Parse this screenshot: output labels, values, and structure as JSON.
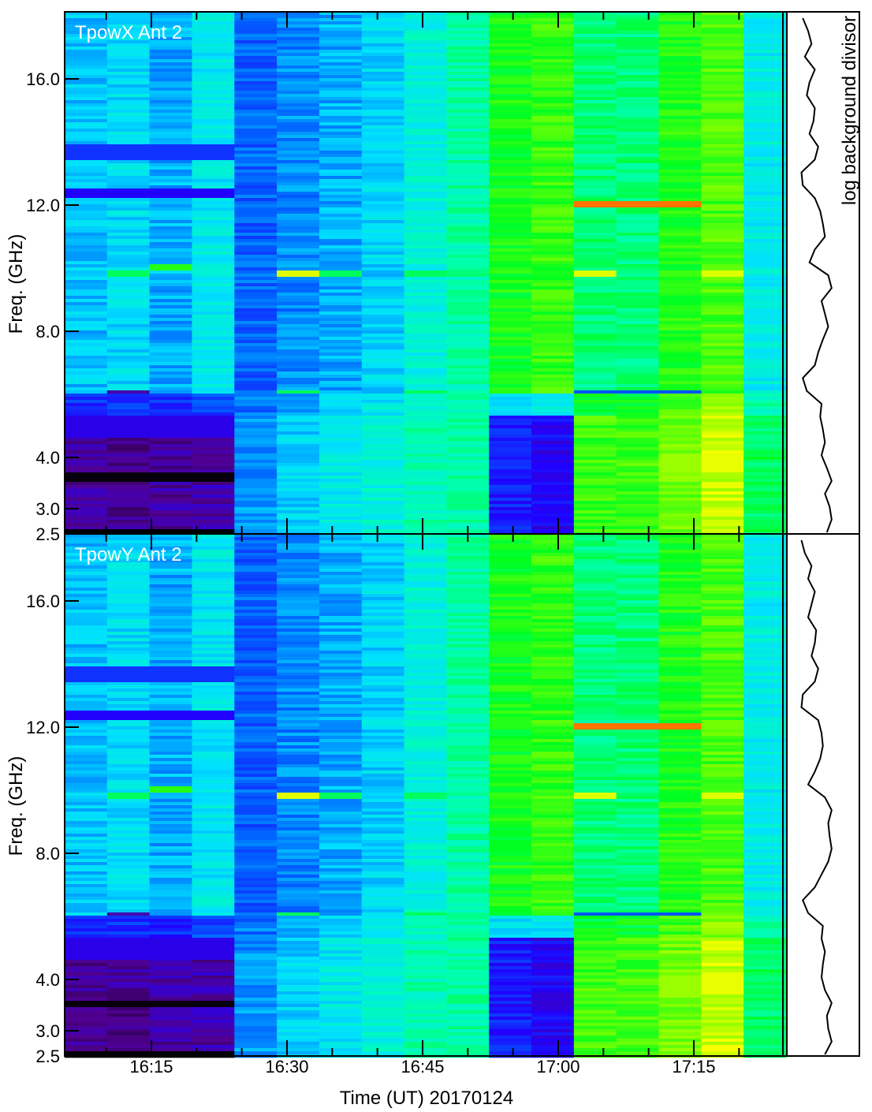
{
  "chart_data": {
    "type": "heatmap",
    "xlabel": "Time (UT) 20170124",
    "ylabel": "Freq. (GHz)",
    "side_label": "log background divisor",
    "x_ticks": [
      "16:15",
      "16:30",
      "16:45",
      "17:00",
      "17:15"
    ],
    "y_ticks": [
      "2.5",
      "3.0",
      "4.0",
      "8.0",
      "12.0",
      "16.0"
    ],
    "y_tick_values": [
      2.5,
      3.0,
      4.0,
      8.0,
      12.0,
      16.0
    ],
    "ylim": [
      2.5,
      18.1
    ],
    "colormap": [
      "#000000",
      "#500090",
      "#2000ff",
      "#0060ff",
      "#00e0ff",
      "#00ffb0",
      "#00ff20",
      "#80ff00",
      "#ffff00",
      "#ff0000"
    ],
    "panels": [
      {
        "title": "TpowX Ant 2",
        "column_levels": [
          0.42,
          0.45,
          0.4,
          0.47,
          0.33,
          0.37,
          0.4,
          0.44,
          0.5,
          0.56,
          0.68,
          0.71,
          0.6,
          0.6,
          0.69,
          0.73,
          0.48
        ],
        "low_band_levels": [
          0.13,
          0.12,
          0.13,
          0.14,
          0.38,
          0.44,
          0.47,
          0.5,
          0.55,
          0.56,
          0.25,
          0.22,
          0.72,
          0.72,
          0.76,
          0.84,
          0.62
        ],
        "features": [
          {
            "f": [
              13.4,
              13.9
            ],
            "cols": [
              0,
              1,
              2,
              3
            ],
            "level": 0.28
          },
          {
            "f": [
              12.2,
              12.5
            ],
            "cols": [
              0,
              1,
              2,
              3
            ],
            "level": 0.22
          },
          {
            "f": [
              11.95,
              12.08
            ],
            "cols": [
              12,
              13,
              14
            ],
            "level": 0.95
          },
          {
            "f": [
              9.7,
              9.9
            ],
            "cols": [
              5,
              12,
              15
            ],
            "level": 0.86
          },
          {
            "f": [
              9.75,
              9.9
            ],
            "cols": [
              1,
              6,
              8
            ],
            "level": 0.62
          },
          {
            "f": [
              9.95,
              10.1
            ],
            "cols": [
              2
            ],
            "level": 0.7
          },
          {
            "f": [
              6.0,
              6.12
            ],
            "cols": [
              1
            ],
            "level": 0.14
          },
          {
            "f": [
              6.0,
              6.12
            ],
            "cols": [
              12,
              13,
              14
            ],
            "level": 0.32
          },
          {
            "f": [
              6.0,
              6.12
            ],
            "cols": [
              5,
              8
            ],
            "level": 0.62
          },
          {
            "f": [
              3.55,
              3.7
            ],
            "cols": [
              0,
              1,
              2,
              3
            ],
            "level": 0.01
          },
          {
            "f": [
              2.5,
              2.58
            ],
            "cols": [
              0,
              1,
              2,
              3
            ],
            "level": 0.0
          },
          {
            "f": [
              4.6,
              5.3
            ],
            "cols": [
              0,
              1,
              2,
              3
            ],
            "level": 0.2
          },
          {
            "f": [
              3.7,
              4.1
            ],
            "cols": [
              15
            ],
            "level": 0.87
          },
          {
            "f": [
              3.7,
              4.1
            ],
            "cols": [
              14
            ],
            "level": 0.8
          }
        ],
        "profile": [
          0.12,
          0.2,
          0.25,
          0.15,
          0.3,
          0.22,
          0.18,
          0.3,
          0.28,
          0.22,
          0.35,
          0.3,
          0.1,
          0.12,
          0.3,
          0.38,
          0.42,
          0.45,
          0.3,
          0.22,
          0.5,
          0.55,
          0.4,
          0.45,
          0.5,
          0.42,
          0.35,
          0.3,
          0.12,
          0.18,
          0.4,
          0.38,
          0.42,
          0.45,
          0.4,
          0.48,
          0.55,
          0.45,
          0.52,
          0.55,
          0.48
        ]
      },
      {
        "title": "TpowY Ant 2",
        "column_levels": [
          0.42,
          0.45,
          0.4,
          0.47,
          0.33,
          0.37,
          0.4,
          0.44,
          0.5,
          0.56,
          0.68,
          0.71,
          0.6,
          0.6,
          0.69,
          0.73,
          0.48
        ],
        "low_band_levels": [
          0.13,
          0.12,
          0.13,
          0.14,
          0.38,
          0.44,
          0.47,
          0.5,
          0.55,
          0.56,
          0.25,
          0.22,
          0.72,
          0.72,
          0.76,
          0.84,
          0.62
        ],
        "features": [
          {
            "f": [
              13.4,
              13.9
            ],
            "cols": [
              0,
              1,
              2,
              3
            ],
            "level": 0.28
          },
          {
            "f": [
              12.2,
              12.5
            ],
            "cols": [
              0,
              1,
              2,
              3
            ],
            "level": 0.22
          },
          {
            "f": [
              11.95,
              12.08
            ],
            "cols": [
              12,
              13,
              14
            ],
            "level": 0.95
          },
          {
            "f": [
              9.7,
              9.9
            ],
            "cols": [
              5,
              12,
              15
            ],
            "level": 0.86
          },
          {
            "f": [
              9.75,
              9.9
            ],
            "cols": [
              1,
              6,
              8
            ],
            "level": 0.62
          },
          {
            "f": [
              9.95,
              10.1
            ],
            "cols": [
              2
            ],
            "level": 0.7
          },
          {
            "f": [
              6.0,
              6.12
            ],
            "cols": [
              1
            ],
            "level": 0.14
          },
          {
            "f": [
              6.0,
              6.12
            ],
            "cols": [
              12,
              13,
              14
            ],
            "level": 0.32
          },
          {
            "f": [
              6.0,
              6.12
            ],
            "cols": [
              5,
              8
            ],
            "level": 0.62
          },
          {
            "f": [
              3.45,
              3.6
            ],
            "cols": [
              0,
              1,
              2,
              3
            ],
            "level": 0.01
          },
          {
            "f": [
              2.5,
              2.58
            ],
            "cols": [
              0,
              1,
              2,
              3
            ],
            "level": 0.0
          },
          {
            "f": [
              4.6,
              5.3
            ],
            "cols": [
              0,
              1,
              2,
              3
            ],
            "level": 0.2
          },
          {
            "f": [
              3.7,
              4.1
            ],
            "cols": [
              15
            ],
            "level": 0.87
          },
          {
            "f": [
              3.7,
              4.1
            ],
            "cols": [
              14
            ],
            "level": 0.8
          }
        ],
        "profile": [
          0.1,
          0.15,
          0.25,
          0.2,
          0.3,
          0.25,
          0.2,
          0.32,
          0.3,
          0.25,
          0.35,
          0.3,
          0.12,
          0.1,
          0.35,
          0.4,
          0.42,
          0.38,
          0.3,
          0.2,
          0.45,
          0.55,
          0.5,
          0.52,
          0.55,
          0.5,
          0.4,
          0.3,
          0.12,
          0.2,
          0.42,
          0.4,
          0.45,
          0.42,
          0.4,
          0.45,
          0.55,
          0.48,
          0.5,
          0.55,
          0.45
        ]
      }
    ]
  }
}
